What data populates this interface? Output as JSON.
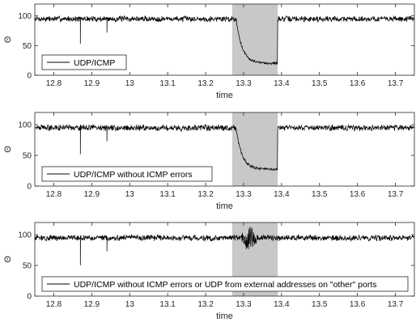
{
  "chart_data": [
    {
      "type": "line",
      "ylabel": "Θ",
      "xlabel": "time",
      "xlim": [
        12.75,
        13.75
      ],
      "ylim": [
        0,
        120
      ],
      "xticks": [
        "12.8",
        "12.9",
        "13",
        "13.1",
        "13.2",
        "13.3",
        "13.4",
        "13.5",
        "13.6",
        "13.7"
      ],
      "xtick_values": [
        12.8,
        12.9,
        13.0,
        13.1,
        13.2,
        13.3,
        13.4,
        13.5,
        13.6,
        13.7
      ],
      "yticks": [
        "0",
        "50",
        "100"
      ],
      "ytick_values": [
        0,
        50,
        100
      ],
      "highlight": {
        "x_start": 13.27,
        "x_end": 13.39,
        "color": "#c8c8c8"
      },
      "legend": {
        "placement": "bottom-left"
      },
      "series": [
        {
          "name": "UDP/ICMP",
          "baseline": 95,
          "noise": 4,
          "spikes": [
            {
              "x": 12.87,
              "y": 53
            },
            {
              "x": 12.94,
              "y": 72
            }
          ],
          "attack": {
            "start": 13.28,
            "end": 13.39,
            "drop_start": 97,
            "drop_to": 20,
            "recovery": 95
          }
        }
      ]
    },
    {
      "type": "line",
      "ylabel": "Θ",
      "xlabel": "time",
      "xlim": [
        12.75,
        13.75
      ],
      "ylim": [
        0,
        120
      ],
      "xticks": [
        "12.8",
        "12.9",
        "13",
        "13.1",
        "13.2",
        "13.3",
        "13.4",
        "13.5",
        "13.6",
        "13.7"
      ],
      "xtick_values": [
        12.8,
        12.9,
        13.0,
        13.1,
        13.2,
        13.3,
        13.4,
        13.5,
        13.6,
        13.7
      ],
      "yticks": [
        "0",
        "50",
        "100"
      ],
      "ytick_values": [
        0,
        50,
        100
      ],
      "highlight": {
        "x_start": 13.27,
        "x_end": 13.39,
        "color": "#c8c8c8"
      },
      "legend": {
        "placement": "bottom-left"
      },
      "series": [
        {
          "name": "UDP/ICMP without ICMP errors",
          "baseline": 95,
          "noise": 4,
          "spikes": [
            {
              "x": 12.87,
              "y": 52
            },
            {
              "x": 12.94,
              "y": 73
            }
          ],
          "attack": {
            "start": 13.28,
            "end": 13.39,
            "drop_start": 95,
            "drop_to": 27,
            "recovery": 95
          }
        }
      ]
    },
    {
      "type": "line",
      "ylabel": "Θ",
      "xlabel": "time",
      "xlim": [
        12.75,
        13.75
      ],
      "ylim": [
        0,
        120
      ],
      "xticks": [
        "12.8",
        "12.9",
        "13",
        "13.1",
        "13.2",
        "13.3",
        "13.4",
        "13.5",
        "13.6",
        "13.7"
      ],
      "xtick_values": [
        12.8,
        12.9,
        13.0,
        13.1,
        13.2,
        13.3,
        13.4,
        13.5,
        13.6,
        13.7
      ],
      "yticks": [
        "0",
        "50",
        "100"
      ],
      "ytick_values": [
        0,
        50,
        100
      ],
      "highlight": {
        "x_start": 13.27,
        "x_end": 13.39,
        "color": "#c8c8c8"
      },
      "legend": {
        "placement": "bottom"
      },
      "series": [
        {
          "name": "UDP/ICMP without ICMP errors or UDP from external addresses on \"other\" ports",
          "baseline": 95,
          "noise": 4,
          "spikes": [
            {
              "x": 12.87,
              "y": 50
            },
            {
              "x": 12.94,
              "y": 73
            }
          ],
          "disturbance": {
            "start": 13.29,
            "end": 13.34,
            "low": 72,
            "high": 113
          }
        }
      ]
    }
  ]
}
